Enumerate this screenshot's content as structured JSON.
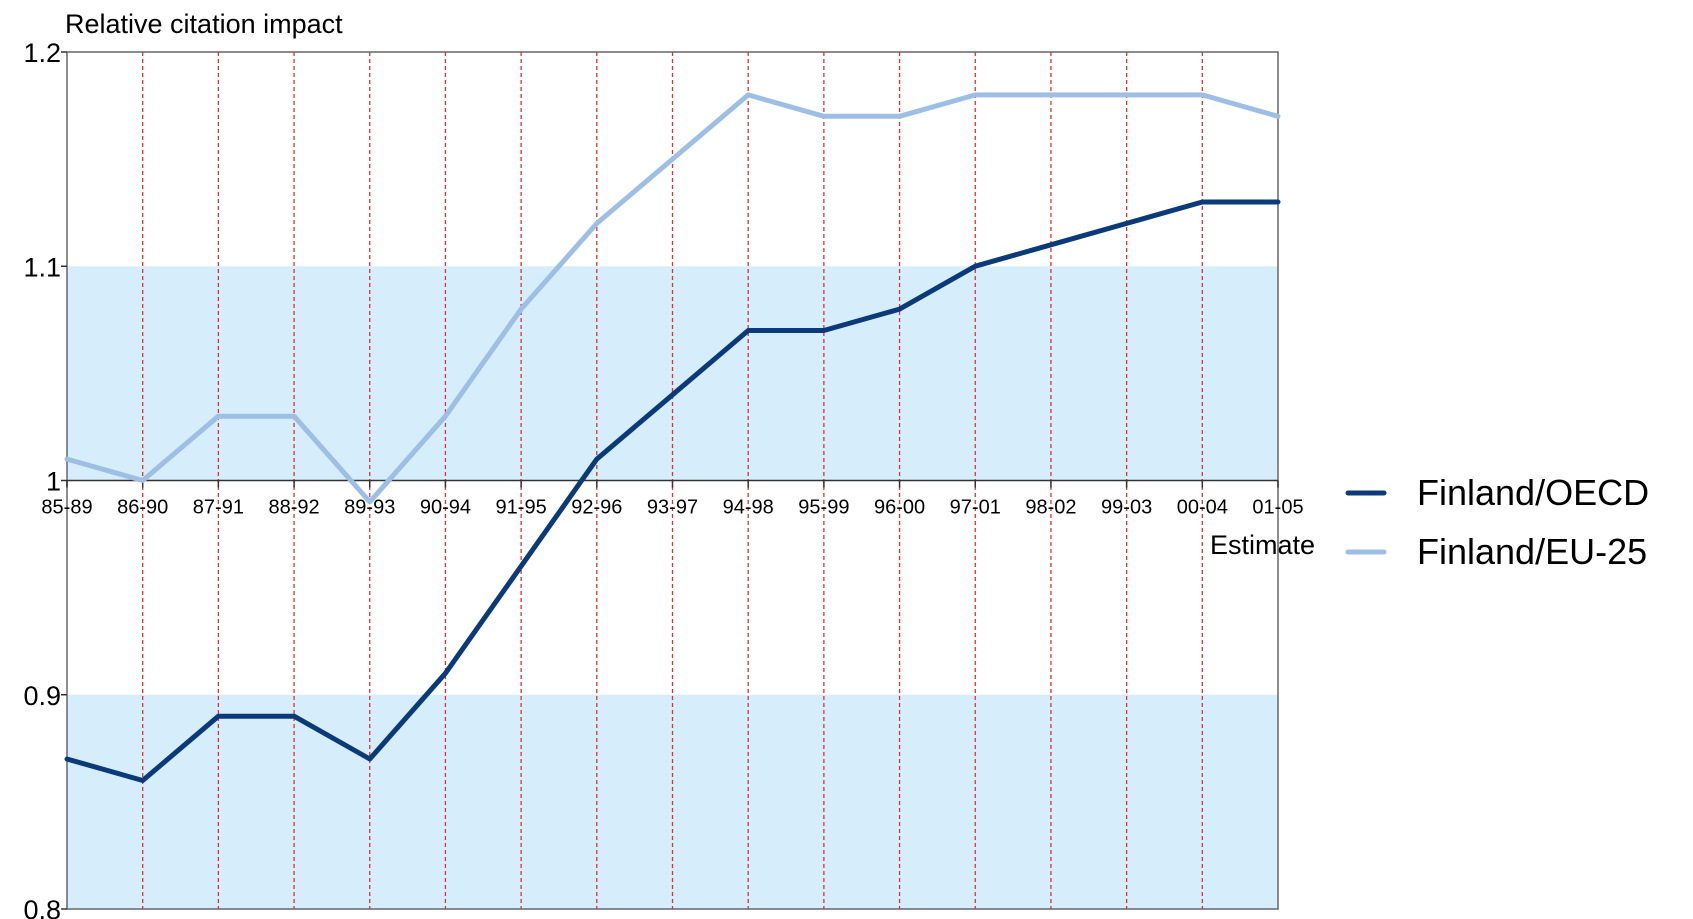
{
  "chart_data": {
    "type": "line",
    "ylabel": "Relative citation impact",
    "ylim": [
      0.8,
      1.2
    ],
    "yticks": [
      0.8,
      0.9,
      1,
      1.1,
      1.2
    ],
    "ytick_labels": [
      "0.8",
      "0.9",
      "1",
      "1.1",
      "1.2"
    ],
    "categories": [
      "85-89",
      "86-90",
      "87-91",
      "88-92",
      "89-93",
      "90-94",
      "91-95",
      "92-96",
      "93-97",
      "94-98",
      "95-99",
      "96-00",
      "97-01",
      "98-02",
      "99-03",
      "00-04",
      "01-05"
    ],
    "x_annotation": "Estimate",
    "bands": [
      [
        0.8,
        0.9
      ],
      [
        1.0,
        1.1
      ]
    ],
    "grid": "vertical dashed",
    "legend_position": "right",
    "series": [
      {
        "name": "Finland/OECD",
        "values": [
          0.87,
          0.86,
          0.89,
          0.89,
          0.87,
          0.91,
          0.96,
          1.01,
          1.04,
          1.07,
          1.07,
          1.08,
          1.1,
          1.11,
          1.12,
          1.13,
          1.13
        ]
      },
      {
        "name": "Finland/EU-25",
        "values": [
          1.01,
          1.0,
          1.03,
          1.03,
          0.99,
          1.03,
          1.08,
          1.12,
          1.15,
          1.18,
          1.17,
          1.17,
          1.18,
          1.18,
          1.18,
          1.18,
          1.17
        ]
      }
    ]
  },
  "colors": {
    "series": [
      "#0a3a7a",
      "#9dbfe6"
    ],
    "band": "#d6eefc",
    "grid": "#e03030",
    "axis": "#666666"
  }
}
